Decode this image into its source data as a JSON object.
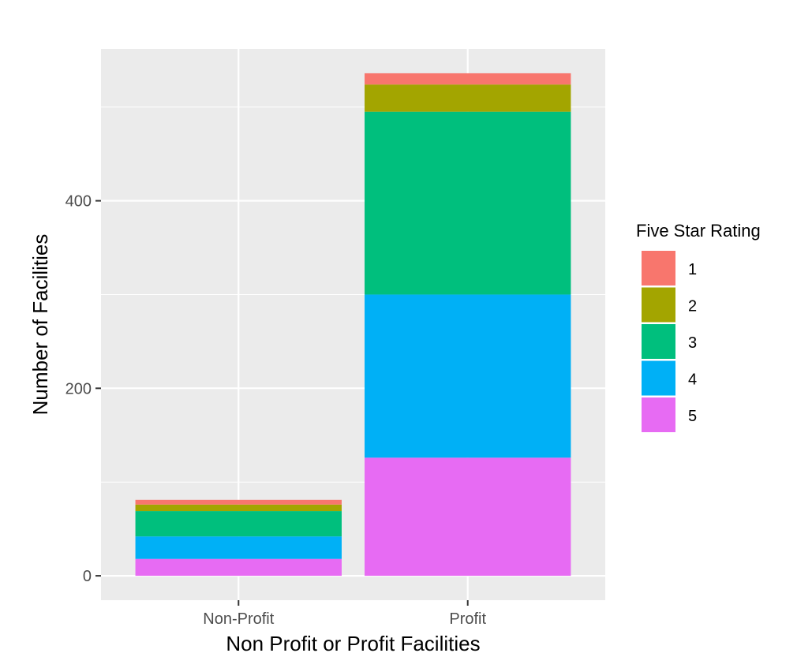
{
  "chart_data": {
    "type": "bar",
    "stacked": true,
    "categories": [
      "Non-Profit",
      "Profit"
    ],
    "series": [
      {
        "name": "1",
        "color": "#F8766D",
        "values": [
          5,
          12
        ]
      },
      {
        "name": "2",
        "color": "#A3A500",
        "values": [
          7,
          29
        ]
      },
      {
        "name": "3",
        "color": "#00BF7D",
        "values": [
          27,
          195
        ]
      },
      {
        "name": "4",
        "color": "#00B0F6",
        "values": [
          24,
          174
        ]
      },
      {
        "name": "5",
        "color": "#E76BF3",
        "values": [
          18,
          126
        ]
      }
    ],
    "xlabel": "Non Profit or Profit Facilities",
    "ylabel": "Number of Facilities",
    "yticks": [
      0,
      200,
      400
    ],
    "ylim": [
      -26,
      562
    ],
    "grid": true,
    "panel_background": "#EBEBEB",
    "legend": {
      "title": "Five Star Rating",
      "position": "right"
    }
  }
}
